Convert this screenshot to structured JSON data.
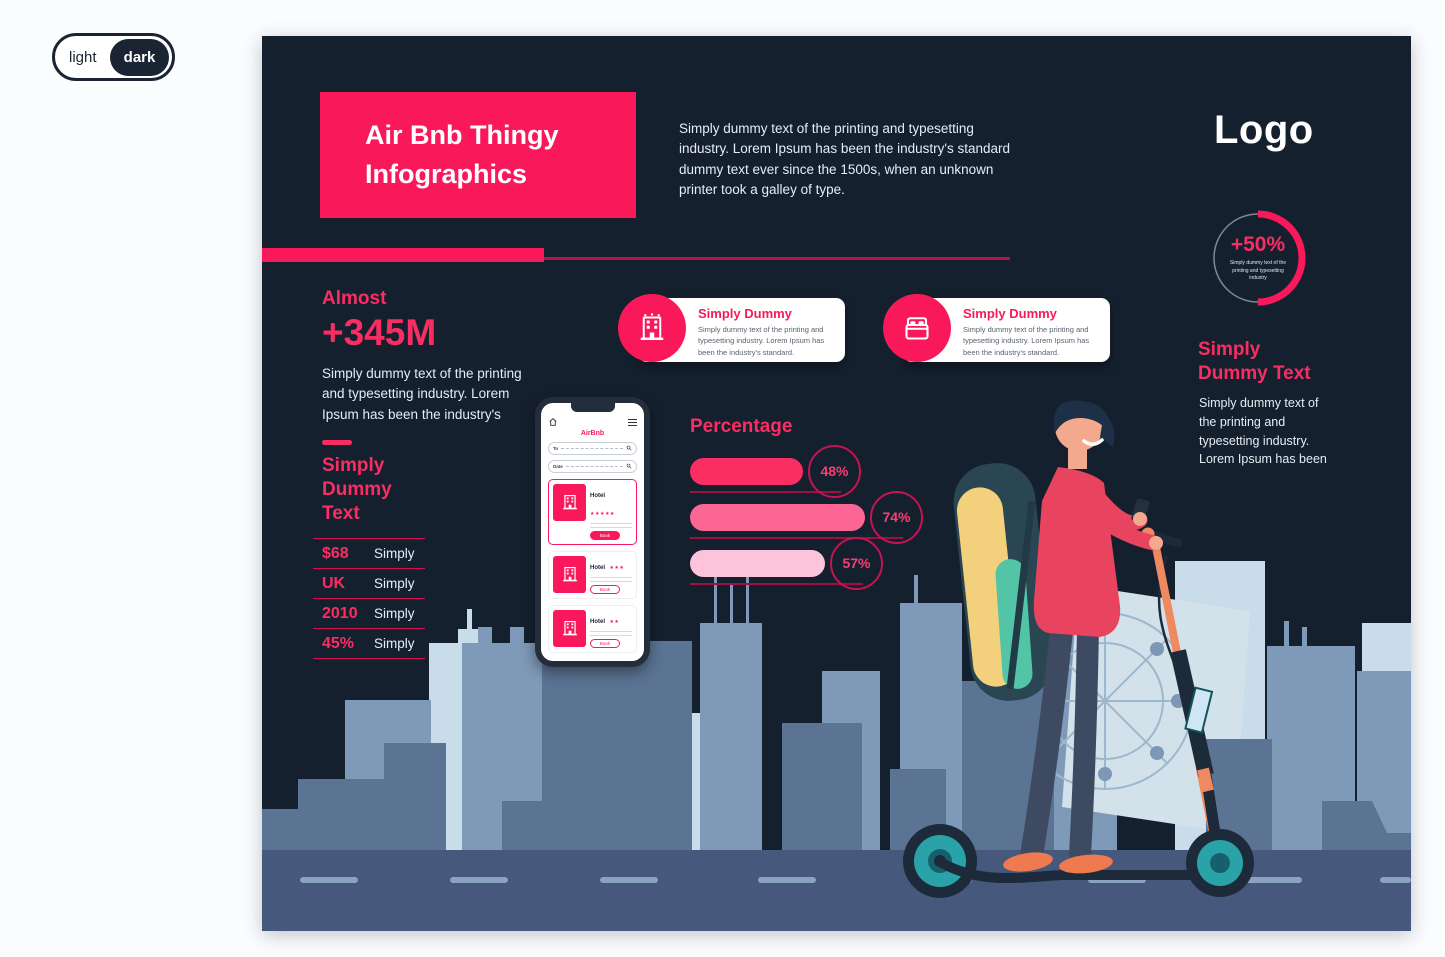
{
  "theme_toggle": {
    "light_label": "light",
    "dark_label": "dark",
    "active": "dark"
  },
  "colors": {
    "accent": "#f9195a",
    "accent_light": "#fb6695",
    "accent_pale": "#fcc3da",
    "poster_background": "#15202e",
    "page_background": "#fbfcfe",
    "teal": "#2aa3a8",
    "orange": "#ef7a50"
  },
  "header": {
    "title": "Air Bnb Thingy\nInfographics",
    "intro": "Simply dummy text of the printing and typesetting industry. Lorem Ipsum has been the industry's standard dummy text ever since the 1500s, when an unknown printer took a galley of type.",
    "logo": "Logo"
  },
  "almost": {
    "label": "Almost",
    "value": "+345M",
    "description": "Simply dummy text of the printing and typesetting industry. Lorem Ipsum has been the industry's"
  },
  "stats": {
    "heading": "Simply\nDummy Text",
    "rows": [
      {
        "value": "$68",
        "label": "Simply"
      },
      {
        "value": "UK",
        "label": "Simply"
      },
      {
        "value": "2010",
        "label": "Simply"
      },
      {
        "value": "45%",
        "label": "Simply"
      }
    ]
  },
  "features": [
    {
      "icon": "building-icon",
      "title": "Simply Dummy",
      "text": "Simply dummy text of the printing and typesetting industry. Lorem Ipsum has been the industry's standard."
    },
    {
      "icon": "bed-icon",
      "title": "Simply Dummy",
      "text": "Simply dummy text of the printing and typesetting industry. Lorem Ipsum has been the industry's standard."
    }
  ],
  "percentage": {
    "title": "Percentage",
    "bars": [
      {
        "value": 48,
        "label": "48%"
      },
      {
        "value": 74,
        "label": "74%"
      },
      {
        "value": 57,
        "label": "57%"
      }
    ]
  },
  "ring": {
    "value": "+50%",
    "percent": 50,
    "caption": "Simply dummy text of the printing and typesetting industry"
  },
  "right_block": {
    "heading": "Simply\nDummy Text",
    "text": "Simply dummy text of the printing and typesetting industry. Lorem Ipsum has been"
  },
  "phone": {
    "app_name": "AirBnb",
    "search_fields": [
      {
        "label": "To"
      },
      {
        "label": "Date"
      }
    ],
    "hotels": [
      {
        "name": "Hotel",
        "stars": "★★★★★",
        "button": "Book"
      },
      {
        "name": "Hotel",
        "stars": "★★★",
        "button": "Book"
      },
      {
        "name": "Hotel",
        "stars": "★★",
        "button": "Book"
      }
    ]
  },
  "chart_data": [
    {
      "type": "bar",
      "title": "Percentage",
      "categories": [
        "bar1",
        "bar2",
        "bar3"
      ],
      "values": [
        48,
        74,
        57
      ],
      "value_suffix": "%",
      "orientation": "horizontal",
      "xlim": [
        0,
        100
      ]
    },
    {
      "type": "pie",
      "title": "+50%",
      "categories": [
        "filled",
        "remaining"
      ],
      "values": [
        50,
        50
      ],
      "style": "donut-progress"
    }
  ]
}
